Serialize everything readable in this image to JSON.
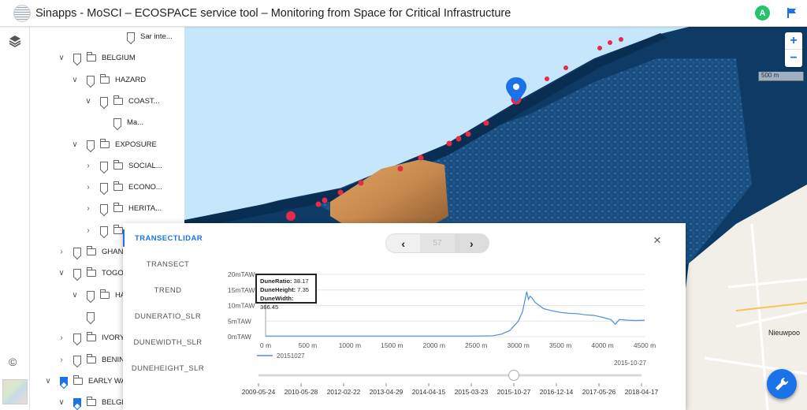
{
  "app": {
    "title": "Sinapps - MoSCI – ECOSPACE service tool – Monitoring from Space for Critical Infrastructure",
    "avatar_letter": "A"
  },
  "tree": [
    {
      "label": "Sar inte...",
      "indent": 0
    },
    {
      "label": "BELGIUM"
    },
    {
      "label": "HAZARD"
    },
    {
      "label": "COAST..."
    },
    {
      "label": "Ma..."
    },
    {
      "label": "EXPOSURE"
    },
    {
      "label": "SOCIAL..."
    },
    {
      "label": "ECONO..."
    },
    {
      "label": "HERITA..."
    },
    {
      "label": ""
    },
    {
      "label": "GHAN"
    },
    {
      "label": "TOGO"
    },
    {
      "label": "HA"
    },
    {
      "label": ""
    },
    {
      "label": "IVORY"
    },
    {
      "label": "BENIN"
    },
    {
      "label": "EARLY WA"
    },
    {
      "label": "BELGI"
    }
  ],
  "map": {
    "scale_label": "500 m",
    "place_label": "Nieuwpoo"
  },
  "panel": {
    "tabs": [
      "TRANSECTLIDAR",
      "TRANSECT",
      "TREND",
      "DUNERATIO_SLR",
      "DUNEWIDTH_SLR",
      "DUNEHEIGHT_SLR"
    ],
    "active_tab": "TRANSECTLIDAR",
    "nav": {
      "prev": "‹",
      "value": "57",
      "next": "›"
    },
    "close": "×",
    "tooltip": [
      {
        "k": "DuneRatio:",
        "v": "38.17"
      },
      {
        "k": "DuneHeight:",
        "v": "7.35"
      },
      {
        "k": "DuneWidth:",
        "v": "366.45"
      }
    ],
    "date_label": "2015-10-27",
    "timeline": [
      "2009-05-24",
      "2010-05-28",
      "2012-02-22",
      "2013-04-29",
      "2014-04-15",
      "2015-03-23",
      "2015-10-27",
      "2016-12-14",
      "2017-05-26",
      "2018-04-17"
    ],
    "timeline_selected_index": 6
  },
  "chart_data": {
    "type": "line",
    "xlabel": "",
    "ylabel": "",
    "x_ticks": [
      "0 m",
      "500 m",
      "1000 m",
      "1500 m",
      "2000 m",
      "2500 m",
      "3000 m",
      "3500 m",
      "4000 m",
      "4500 m"
    ],
    "y_ticks": [
      "0mTAW",
      "5mTAW",
      "10mTAW",
      "15mTAW",
      "20mTAW"
    ],
    "xlim": [
      0,
      4500
    ],
    "ylim": [
      0,
      20
    ],
    "series": [
      {
        "name": "20151027",
        "x": [
          0,
          200,
          500,
          1000,
          1500,
          2000,
          2500,
          2700,
          2800,
          2900,
          2950,
          3000,
          3050,
          3100,
          3120,
          3140,
          3160,
          3200,
          3250,
          3300,
          3400,
          3500,
          3600,
          3700,
          3800,
          3900,
          4000,
          4100,
          4150,
          4200,
          4300,
          4400,
          4500
        ],
        "y": [
          0.2,
          0.2,
          0.2,
          0.2,
          0.2,
          0.2,
          0.2,
          0.3,
          0.8,
          2,
          3.5,
          5,
          8,
          14.5,
          12,
          13,
          12.5,
          11,
          10,
          9,
          8.3,
          7.8,
          7.5,
          7.4,
          7,
          6.8,
          6.2,
          5.5,
          4,
          5.5,
          5.3,
          5.2,
          5.3
        ]
      }
    ]
  }
}
